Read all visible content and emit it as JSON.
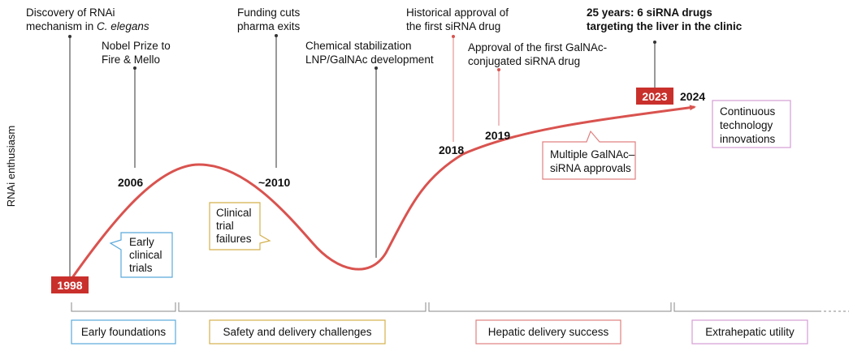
{
  "y_axis_label": "RNAi enthusiasm",
  "colors": {
    "curve": "#d9534f",
    "red_box": "#c9302c",
    "blue": "#5aa9dc",
    "gold": "#d4b04c",
    "red_outline": "#e08080",
    "pink": "#d59cd6",
    "stem": "#333333"
  },
  "milestones": {
    "m1998": {
      "year": "1998",
      "line1": "Discovery of RNAi",
      "line2a": "mechanism in ",
      "line2b": "C. elegans"
    },
    "m2006": {
      "year": "2006",
      "line1": "Nobel Prize to",
      "line2": "Fire & Mello"
    },
    "m2010": {
      "year": "~2010",
      "line1": "Funding cuts",
      "line2": "pharma exits"
    },
    "mchem": {
      "line1": "Chemical stabilization",
      "line2": "LNP/GalNAc development"
    },
    "m2018": {
      "year": "2018",
      "line1": "Historical approval of",
      "line2": "the first siRNA drug"
    },
    "m2019": {
      "year": "2019",
      "line1": "Approval of the first GalNAc-",
      "line2": "conjugated siRNA drug"
    },
    "m2023": {
      "year": "2023",
      "line1": "25 years: 6 siRNA drugs",
      "line2": "targeting the liver in the clinic"
    },
    "m2024": {
      "year": "2024"
    }
  },
  "callouts": {
    "early_trials": {
      "line1": "Early",
      "line2": "clinical",
      "line3": "trials"
    },
    "trial_failures": {
      "line1": "Clinical",
      "line2": "trial",
      "line3": "failures"
    },
    "galnac_approvals": {
      "line1": "Multiple GalNAc–",
      "line2": "siRNA approvals"
    },
    "innovations": {
      "line1": "Continuous",
      "line2": "technology",
      "line3": "innovations"
    }
  },
  "phases": {
    "p1": "Early foundations",
    "p2": "Safety and delivery challenges",
    "p3": "Hepatic delivery success",
    "p4": "Extrahepatic utility"
  }
}
